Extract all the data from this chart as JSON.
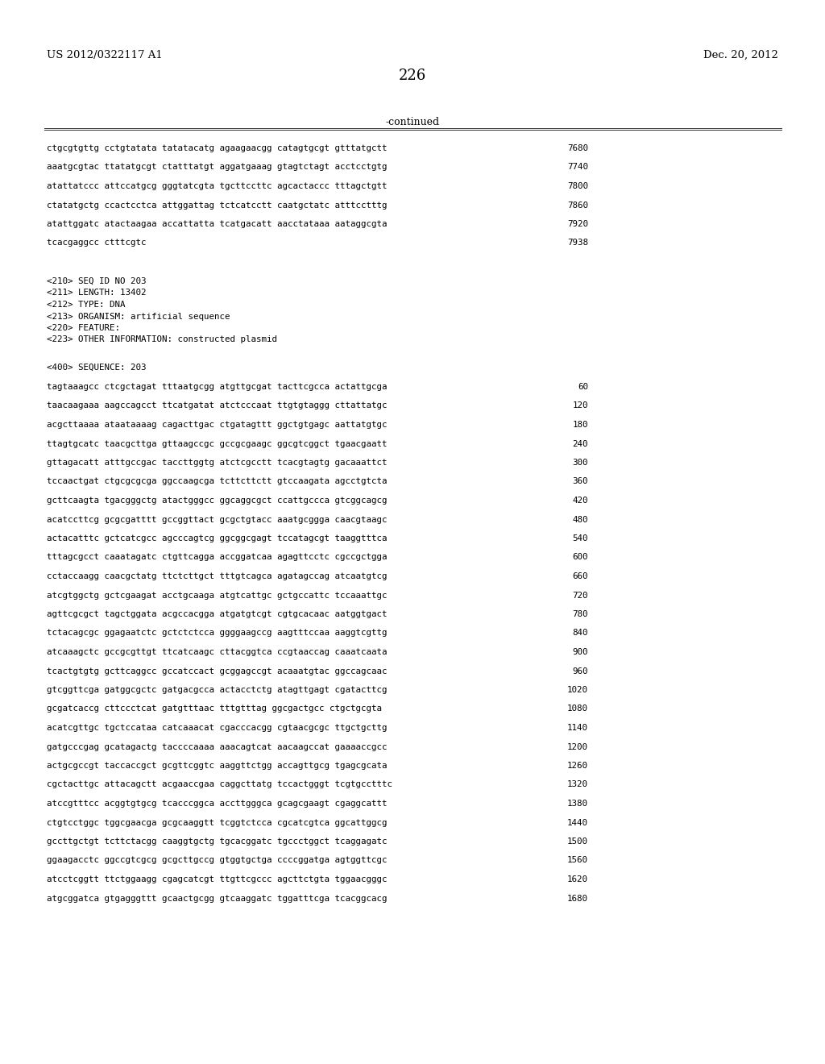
{
  "header_left": "US 2012/0322117 A1",
  "header_right": "Dec. 20, 2012",
  "page_number": "226",
  "continued_label": "-continued",
  "background_color": "#ffffff",
  "text_color": "#000000",
  "top_section": [
    [
      "ctgcgtgttg cctgtatata tatatacatg agaagaacgg catagtgcgt gtttatgctt",
      "7680"
    ],
    [
      "aaatgcgtac ttatatgcgt ctatttatgt aggatgaaag gtagtctagt acctcctgtg",
      "7740"
    ],
    [
      "atattatccc attccatgcg gggtatcgta tgcttccttc agcactaccc tttagctgtt",
      "7800"
    ],
    [
      "ctatatgctg ccactcctca attggattag tctcatcctt caatgctatc atttcctttg",
      "7860"
    ],
    [
      "atattggatc atactaagaa accattatta tcatgacatt aacctataaa aataggcgta",
      "7920"
    ],
    [
      "tcacgaggcc ctttcgtc",
      "7938"
    ]
  ],
  "metadata": [
    "<210> SEQ ID NO 203",
    "<211> LENGTH: 13402",
    "<212> TYPE: DNA",
    "<213> ORGANISM: artificial sequence",
    "<220> FEATURE:",
    "<223> OTHER INFORMATION: constructed plasmid"
  ],
  "sequence_header": "<400> SEQUENCE: 203",
  "sequence_lines": [
    [
      "tagtaaagcc ctcgctagat tttaatgcgg atgttgcgat tacttcgcca actattgcga",
      "60"
    ],
    [
      "taacaagaaa aagccagcct ttcatgatat atctcccaat ttgtgtaggg cttattatgc",
      "120"
    ],
    [
      "acgcttaaaa ataataaaag cagacttgac ctgatagttt ggctgtgagc aattatgtgc",
      "180"
    ],
    [
      "ttagtgcatc taacgcttga gttaagccgc gccgcgaagc ggcgtcggct tgaacgaatt",
      "240"
    ],
    [
      "gttagacatt atttgccgac taccttggtg atctcgcctt tcacgtagtg gacaaattct",
      "300"
    ],
    [
      "tccaactgat ctgcgcgcga ggccaagcga tcttcttctt gtccaagata agcctgtcta",
      "360"
    ],
    [
      "gcttcaagta tgacgggctg atactgggcc ggcaggcgct ccattgccca gtcggcagcg",
      "420"
    ],
    [
      "acatccttcg gcgcgatttt gccggttact gcgctgtacc aaatgcggga caacgtaagc",
      "480"
    ],
    [
      "actacatttc gctcatcgcc agcccagtcg ggcggcgagt tccatagcgt taaggtttca",
      "540"
    ],
    [
      "tttagcgcct caaatagatc ctgttcagga accggatcaa agagttcctc cgccgctgga",
      "600"
    ],
    [
      "cctaccaagg caacgctatg ttctcttgct tttgtcagca agatagccag atcaatgtcg",
      "660"
    ],
    [
      "atcgtggctg gctcgaagat acctgcaaga atgtcattgc gctgccattc tccaaattgc",
      "720"
    ],
    [
      "agttcgcgct tagctggata acgccacgga atgatgtcgt cgtgcacaac aatggtgact",
      "780"
    ],
    [
      "tctacagcgc ggagaatctc gctctctcca ggggaagccg aagtttccaa aaggtcgttg",
      "840"
    ],
    [
      "atcaaagctc gccgcgttgt ttcatcaagc cttacggtca ccgtaaccag caaatcaata",
      "900"
    ],
    [
      "tcactgtgtg gcttcaggcc gccatccact gcggagccgt acaaatgtac ggccagcaac",
      "960"
    ],
    [
      "gtcggttcga gatggcgctc gatgacgcca actacctctg atagttgagt cgatacttcg",
      "1020"
    ],
    [
      "gcgatcaccg cttccctcat gatgtttaac tttgtttag ggcgactgcc ctgctgcgta",
      "1080"
    ],
    [
      "acatcgttgc tgctccataa catcaaacat cgacccacgg cgtaacgcgc ttgctgcttg",
      "1140"
    ],
    [
      "gatgcccgag gcatagactg taccccaaaa aaacagtcat aacaagccat gaaaaccgcc",
      "1200"
    ],
    [
      "actgcgccgt taccaccgct gcgttcggtc aaggttctgg accagttgcg tgagcgcata",
      "1260"
    ],
    [
      "cgctacttgc attacagctt acgaaccgaa caggcttatg tccactgggt tcgtgcctttc",
      "1320"
    ],
    [
      "atccgtttcc acggtgtgcg tcacccggca accttgggca gcagcgaagt cgaggcattt",
      "1380"
    ],
    [
      "ctgtcctggc tggcgaacga gcgcaaggtt tcggtctcca cgcatcgtca ggcattggcg",
      "1440"
    ],
    [
      "gccttgctgt tcttctacgg caaggtgctg tgcacggatc tgccctggct tcaggagatc",
      "1500"
    ],
    [
      "ggaagacctc ggccgtcgcg gcgcttgccg gtggtgctga ccccggatga agtggttcgc",
      "1560"
    ],
    [
      "atcctcggtt ttctggaagg cgagcatcgt ttgttcgccc agcttctgta tggaacgggc",
      "1620"
    ],
    [
      "atgcggatca gtgagggttt gcaactgcgg gtcaaggatc tggatttcga tcacggcacg",
      "1680"
    ]
  ]
}
